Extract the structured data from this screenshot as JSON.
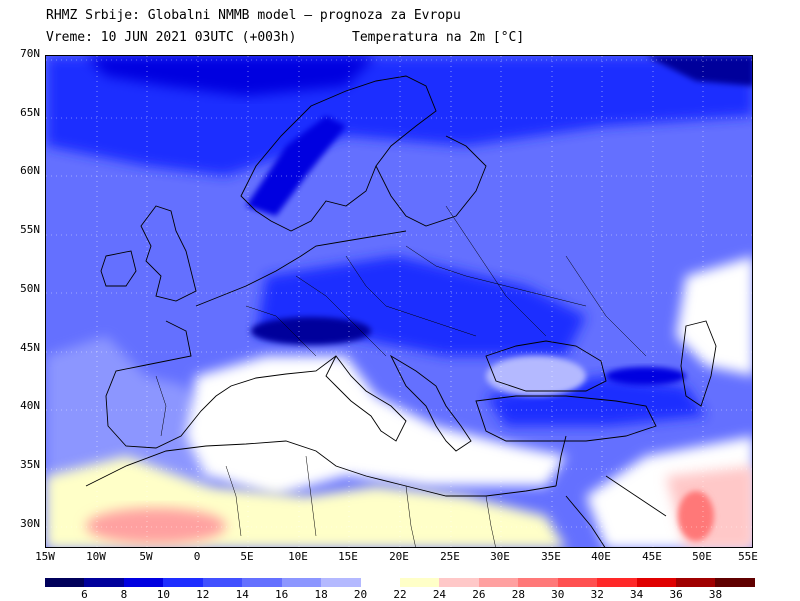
{
  "header": {
    "line1": "RHMZ Srbije: Globalni NMMB model — prognoza za Evropu",
    "line2_left": "Vreme: 10 JUN 2021 03UTC (+003h)",
    "line2_right": "Temperatura na 2m [°C]"
  },
  "axes": {
    "lat_labels": [
      "70N",
      "65N",
      "60N",
      "55N",
      "50N",
      "45N",
      "40N",
      "35N",
      "30N"
    ],
    "lon_labels": [
      "15W",
      "10W",
      "5W",
      "0",
      "5E",
      "10E",
      "15E",
      "20E",
      "25E",
      "30E",
      "35E",
      "40E",
      "45E",
      "50E",
      "55E"
    ]
  },
  "legend": {
    "labels": [
      "6",
      "8",
      "10",
      "12",
      "14",
      "16",
      "18",
      "20",
      "22",
      "24",
      "26",
      "28",
      "30",
      "32",
      "34",
      "36",
      "38"
    ],
    "colors": [
      "#00005a",
      "#00009b",
      "#0000e0",
      "#1e2dff",
      "#4150ff",
      "#6470ff",
      "#8c96ff",
      "#b4b9ff",
      "#ffffff",
      "#ffffc8",
      "#ffc8c8",
      "#ffa0a0",
      "#ff7878",
      "#ff5050",
      "#ff2828",
      "#e00000",
      "#a00000",
      "#600000"
    ]
  }
}
